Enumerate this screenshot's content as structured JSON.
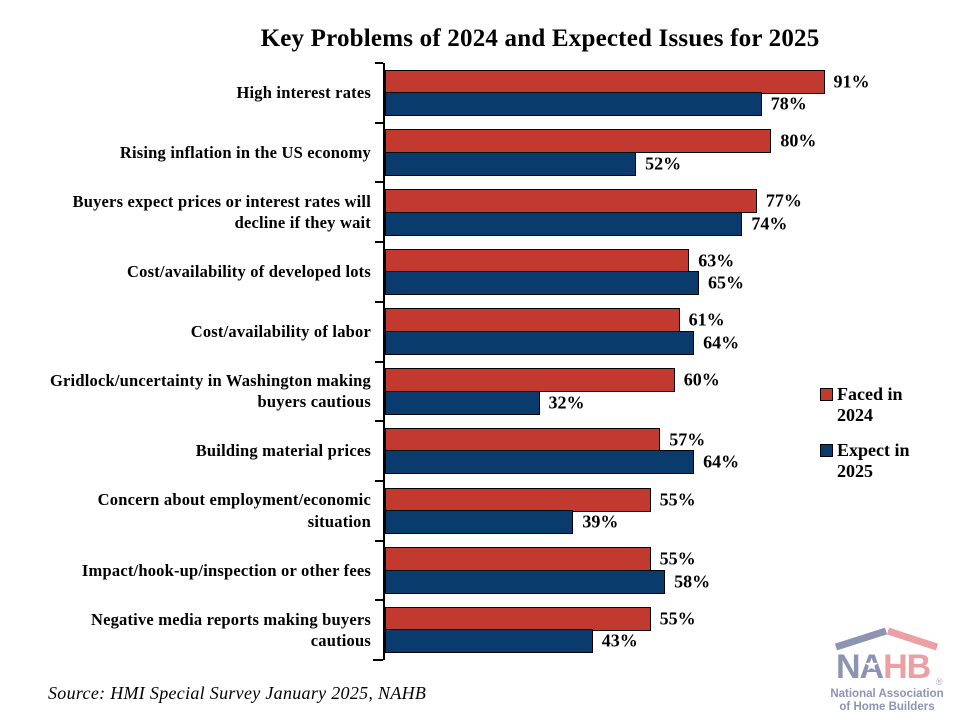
{
  "chart_data": {
    "type": "bar",
    "orientation": "horizontal",
    "title": "Key Problems of 2024 and Expected Issues for 2025",
    "categories": [
      "High interest rates",
      "Rising inflation in the US economy",
      "Buyers expect prices or interest rates will decline if they wait",
      "Cost/availability of developed lots",
      "Cost/availability of labor",
      "Gridlock/uncertainty in Washington making buyers cautious",
      "Building material prices",
      "Concern about employment/economic situation",
      "Impact/hook-up/inspection or other fees",
      "Negative media reports making buyers cautious"
    ],
    "series": [
      {
        "name": "Faced in 2024",
        "color": "#C1392F",
        "values": [
          91,
          80,
          77,
          63,
          61,
          60,
          57,
          55,
          55,
          55
        ]
      },
      {
        "name": "Expect in 2025",
        "color": "#093C6D",
        "values": [
          78,
          52,
          74,
          65,
          64,
          32,
          64,
          39,
          58,
          43
        ]
      }
    ],
    "value_suffix": "%",
    "xlim": [
      0,
      100
    ],
    "grid": false,
    "legend_position": "right",
    "bar_border_color": "#000000"
  },
  "source_note": "Source: HMI Special Survey January 2025, NAHB",
  "logo": {
    "acronym_left": "NA",
    "acronym_right": "HB",
    "registered_mark": "®",
    "caption_line1": "National Association",
    "caption_line2": "of Home Builders",
    "slate_color": "#8D94B2",
    "pink_color": "#ECA0A4"
  }
}
